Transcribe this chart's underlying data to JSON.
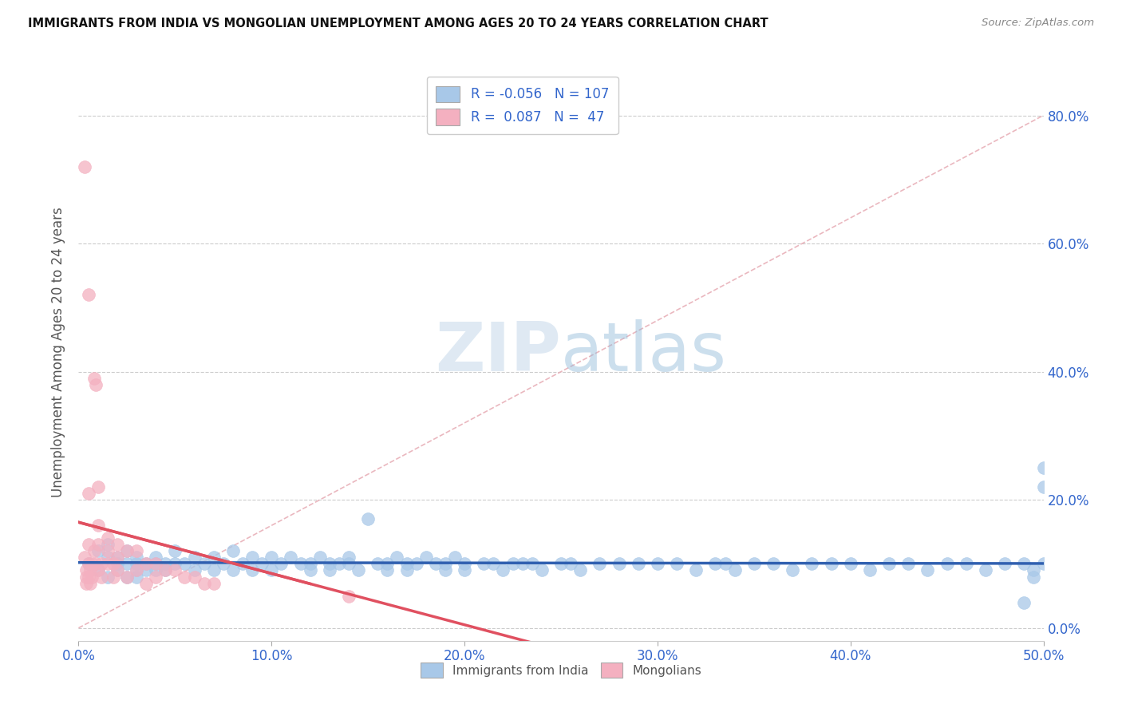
{
  "title": "IMMIGRANTS FROM INDIA VS MONGOLIAN UNEMPLOYMENT AMONG AGES 20 TO 24 YEARS CORRELATION CHART",
  "source": "Source: ZipAtlas.com",
  "xlabel_ticks": [
    "0.0%",
    "10.0%",
    "20.0%",
    "30.0%",
    "40.0%",
    "50.0%"
  ],
  "ylabel_ticks": [
    "0.0%",
    "20.0%",
    "40.0%",
    "60.0%",
    "80.0%"
  ],
  "ylabel": "Unemployment Among Ages 20 to 24 years",
  "legend_label_blue": "Immigrants from India",
  "legend_label_pink": "Mongolians",
  "R_blue": "-0.056",
  "N_blue": "107",
  "R_pink": "0.087",
  "N_pink": "47",
  "blue_color": "#a8c8e8",
  "pink_color": "#f4b0c0",
  "blue_line_color": "#3060b0",
  "pink_line_color": "#e05060",
  "diag_line_color": "#e8b0b8",
  "xlim": [
    0.0,
    0.5
  ],
  "ylim": [
    -0.02,
    0.88
  ],
  "x_tick_vals": [
    0.0,
    0.1,
    0.2,
    0.3,
    0.4,
    0.5
  ],
  "y_tick_vals": [
    0.0,
    0.2,
    0.4,
    0.6,
    0.8
  ],
  "blue_scatter_x": [
    0.005,
    0.01,
    0.01,
    0.015,
    0.015,
    0.015,
    0.02,
    0.02,
    0.02,
    0.025,
    0.025,
    0.025,
    0.03,
    0.03,
    0.03,
    0.03,
    0.035,
    0.035,
    0.04,
    0.04,
    0.04,
    0.045,
    0.045,
    0.05,
    0.05,
    0.055,
    0.06,
    0.06,
    0.065,
    0.07,
    0.07,
    0.075,
    0.08,
    0.08,
    0.085,
    0.09,
    0.09,
    0.095,
    0.1,
    0.1,
    0.105,
    0.11,
    0.115,
    0.12,
    0.12,
    0.125,
    0.13,
    0.13,
    0.135,
    0.14,
    0.14,
    0.145,
    0.15,
    0.155,
    0.16,
    0.16,
    0.165,
    0.17,
    0.17,
    0.175,
    0.18,
    0.185,
    0.19,
    0.19,
    0.195,
    0.2,
    0.2,
    0.21,
    0.215,
    0.22,
    0.225,
    0.23,
    0.235,
    0.24,
    0.25,
    0.255,
    0.26,
    0.27,
    0.28,
    0.29,
    0.3,
    0.31,
    0.32,
    0.33,
    0.335,
    0.34,
    0.35,
    0.36,
    0.37,
    0.38,
    0.39,
    0.4,
    0.41,
    0.42,
    0.43,
    0.44,
    0.45,
    0.46,
    0.47,
    0.48,
    0.49,
    0.495,
    0.5,
    0.5,
    0.5,
    0.495,
    0.49
  ],
  "blue_scatter_y": [
    0.1,
    0.12,
    0.09,
    0.11,
    0.08,
    0.13,
    0.1,
    0.09,
    0.11,
    0.1,
    0.08,
    0.12,
    0.1,
    0.09,
    0.08,
    0.11,
    0.1,
    0.09,
    0.1,
    0.09,
    0.11,
    0.1,
    0.09,
    0.1,
    0.12,
    0.1,
    0.09,
    0.11,
    0.1,
    0.09,
    0.11,
    0.1,
    0.09,
    0.12,
    0.1,
    0.09,
    0.11,
    0.1,
    0.11,
    0.09,
    0.1,
    0.11,
    0.1,
    0.09,
    0.1,
    0.11,
    0.1,
    0.09,
    0.1,
    0.11,
    0.1,
    0.09,
    0.17,
    0.1,
    0.09,
    0.1,
    0.11,
    0.1,
    0.09,
    0.1,
    0.11,
    0.1,
    0.09,
    0.1,
    0.11,
    0.1,
    0.09,
    0.1,
    0.1,
    0.09,
    0.1,
    0.1,
    0.1,
    0.09,
    0.1,
    0.1,
    0.09,
    0.1,
    0.1,
    0.1,
    0.1,
    0.1,
    0.09,
    0.1,
    0.1,
    0.09,
    0.1,
    0.1,
    0.09,
    0.1,
    0.1,
    0.1,
    0.09,
    0.1,
    0.1,
    0.09,
    0.1,
    0.1,
    0.09,
    0.1,
    0.1,
    0.09,
    0.25,
    0.22,
    0.1,
    0.08,
    0.04
  ],
  "pink_scatter_x": [
    0.003,
    0.003,
    0.004,
    0.004,
    0.004,
    0.005,
    0.005,
    0.005,
    0.005,
    0.005,
    0.006,
    0.006,
    0.007,
    0.007,
    0.008,
    0.008,
    0.009,
    0.009,
    0.01,
    0.01,
    0.01,
    0.01,
    0.012,
    0.012,
    0.015,
    0.015,
    0.015,
    0.018,
    0.018,
    0.02,
    0.02,
    0.02,
    0.025,
    0.025,
    0.03,
    0.03,
    0.035,
    0.035,
    0.04,
    0.04,
    0.045,
    0.05,
    0.055,
    0.06,
    0.065,
    0.07,
    0.14
  ],
  "pink_scatter_y": [
    0.72,
    0.11,
    0.09,
    0.08,
    0.07,
    0.52,
    0.21,
    0.13,
    0.1,
    0.08,
    0.09,
    0.07,
    0.1,
    0.08,
    0.39,
    0.12,
    0.38,
    0.1,
    0.22,
    0.16,
    0.13,
    0.09,
    0.1,
    0.08,
    0.14,
    0.12,
    0.1,
    0.1,
    0.08,
    0.13,
    0.11,
    0.09,
    0.12,
    0.08,
    0.12,
    0.09,
    0.1,
    0.07,
    0.1,
    0.08,
    0.09,
    0.09,
    0.08,
    0.08,
    0.07,
    0.07,
    0.05
  ]
}
